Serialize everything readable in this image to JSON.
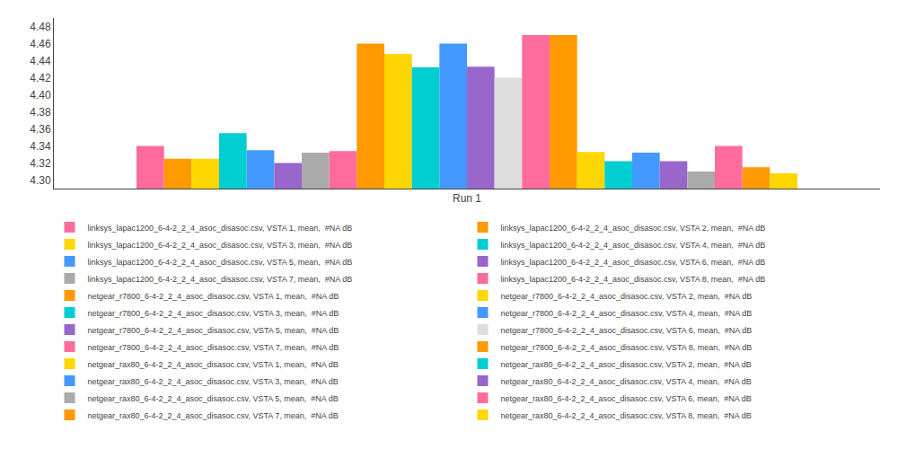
{
  "chart_data": {
    "type": "bar",
    "categories": [
      "Run 1"
    ],
    "series": [
      {
        "name": "linksys_lapac1200_6-4-2_2_4_asoc_disasoc.csv, VSTA 1, mean,  #NA dB",
        "color": "#FF6B9D",
        "values": [
          4.34
        ]
      },
      {
        "name": "linksys_lapac1200_6-4-2_2_4_asoc_disasoc.csv, VSTA 2, mean,  #NA dB",
        "color": "#FF9900",
        "values": [
          4.325
        ]
      },
      {
        "name": "linksys_lapac1200_6-4-2_2_4_asoc_disasoc.csv, VSTA 3, mean,  #NA dB",
        "color": "#FFD700",
        "values": [
          4.325
        ]
      },
      {
        "name": "linksys_lapac1200_6-4-2_2_4_asoc_disasoc.csv, VSTA 4, mean,  #NA dB",
        "color": "#00CED1",
        "values": [
          4.355
        ]
      },
      {
        "name": "linksys_lapac1200_6-4-2_2_4_asoc_disasoc.csv, VSTA 5, mean,  #NA dB",
        "color": "#4499FF",
        "values": [
          4.335
        ]
      },
      {
        "name": "linksys_lapac1200_6-4-2_2_4_asoc_disasoc.csv, VSTA 6, mean,  #NA dB",
        "color": "#9966CC",
        "values": [
          4.32
        ]
      },
      {
        "name": "linksys_lapac1200_6-4-2_2_4_asoc_disasoc.csv, VSTA 7, mean,  #NA dB",
        "color": "#AAAAAA",
        "values": [
          4.332
        ]
      },
      {
        "name": "linksys_lapac1200_6-4-2_2_4_asoc_disasoc.csv, VSTA 8, mean,  #NA dB",
        "color": "#FF6B9D",
        "values": [
          4.334
        ]
      },
      {
        "name": "netgear_r7800_6-4-2_2_4_asoc_disasoc.csv, VSTA 1, mean,  #NA dB",
        "color": "#FF9900",
        "values": [
          4.46
        ]
      },
      {
        "name": "netgear_r7800_6-4-2_2_4_asoc_disasoc.csv, VSTA 2, mean,  #NA dB",
        "color": "#FFD700",
        "values": [
          4.448
        ]
      },
      {
        "name": "netgear_r7800_6-4-2_2_4_asoc_disasoc.csv, VSTA 3, mean,  #NA dB",
        "color": "#00CED1",
        "values": [
          4.432
        ]
      },
      {
        "name": "netgear_r7800_6-4-2_2_4_asoc_disasoc.csv, VSTA 4, mean,  #NA dB",
        "color": "#4499FF",
        "values": [
          4.46
        ]
      },
      {
        "name": "netgear_r7800_6-4-2_2_4_asoc_disasoc.csv, VSTA 5, mean,  #NA dB",
        "color": "#9966CC",
        "values": [
          4.433
        ]
      },
      {
        "name": "netgear_r7800_6-4-2_2_4_asoc_disasoc.csv, VSTA 6, mean,  #NA dB",
        "color": "#DDDDDD",
        "values": [
          4.42
        ]
      },
      {
        "name": "netgear_r7800_6-4-2_2_4_asoc_disasoc.csv, VSTA 7, mean,  #NA dB",
        "color": "#FF6B9D",
        "values": [
          4.47
        ]
      },
      {
        "name": "netgear_r7800_6-4-2_2_4_asoc_disasoc.csv, VSTA 8, mean,  #NA dB",
        "color": "#FF9900",
        "values": [
          4.47
        ]
      },
      {
        "name": "netgear_rax80_6-4-2_2_4_asoc_disasoc.csv, VSTA 1, mean,  #NA dB",
        "color": "#FFD700",
        "values": [
          4.333
        ]
      },
      {
        "name": "netgear_rax80_6-4-2_2_4_asoc_disasoc.csv, VSTA 2, mean,  #NA dB",
        "color": "#00CED1",
        "values": [
          4.322
        ]
      },
      {
        "name": "netgear_rax80_6-4-2_2_4_asoc_disasoc.csv, VSTA 3, mean,  #NA dB",
        "color": "#4499FF",
        "values": [
          4.332
        ]
      },
      {
        "name": "netgear_rax80_6-4-2_2_4_asoc_disasoc.csv, VSTA 4, mean,  #NA dB",
        "color": "#9966CC",
        "values": [
          4.322
        ]
      },
      {
        "name": "netgear_rax80_6-4-2_2_4_asoc_disasoc.csv, VSTA 5, mean,  #NA dB",
        "color": "#AAAAAA",
        "values": [
          4.31
        ]
      },
      {
        "name": "netgear_rax80_6-4-2_2_4_asoc_disasoc.csv, VSTA 6, mean,  #NA dB",
        "color": "#FF6B9D",
        "values": [
          4.34
        ]
      },
      {
        "name": "netgear_rax80_6-4-2_2_4_asoc_disasoc.csv, VSTA 7, mean,  #NA dB",
        "color": "#FF9900",
        "values": [
          4.315
        ]
      },
      {
        "name": "netgear_rax80_6-4-2_2_4_asoc_disasoc.csv, VSTA 8, mean,  #NA dB",
        "color": "#FFD700",
        "values": [
          4.308
        ]
      }
    ],
    "ylim": [
      4.29,
      4.49
    ],
    "yticks": [
      {
        "value": 4.3,
        "label": "4.30"
      },
      {
        "value": 4.32,
        "label": "4.32"
      },
      {
        "value": 4.34,
        "label": "4.34"
      },
      {
        "value": 4.36,
        "label": "4.36"
      },
      {
        "value": 4.38,
        "label": "4.38"
      },
      {
        "value": 4.4,
        "label": "4.40"
      },
      {
        "value": 4.42,
        "label": "4.42"
      },
      {
        "value": 4.44,
        "label": "4.44"
      },
      {
        "value": 4.46,
        "label": "4.46"
      },
      {
        "value": 4.48,
        "label": "4.48"
      }
    ],
    "grid": false,
    "legend": "bottom"
  }
}
